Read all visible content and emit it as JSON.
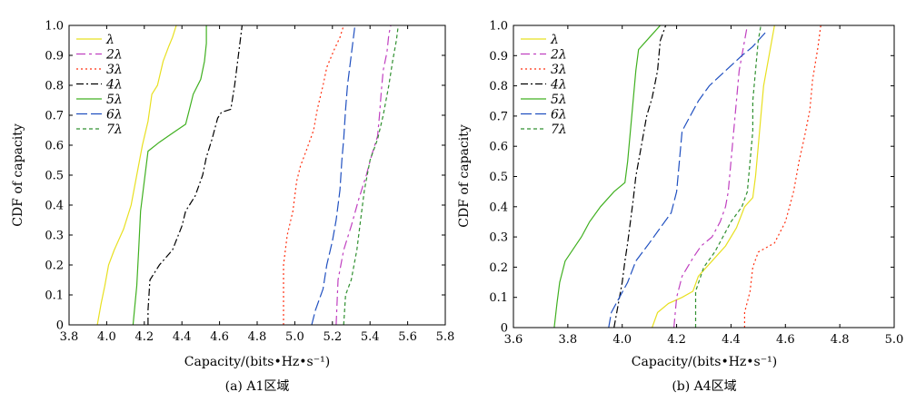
{
  "chart_data": [
    {
      "type": "line",
      "caption": "(a) A1区域",
      "xlabel": "Capacity/(bits•Hz•s⁻¹)",
      "ylabel": "CDF of capacity",
      "xlim": [
        3.8,
        5.8
      ],
      "ylim": [
        0,
        1.0
      ],
      "xticks": [
        "3.8",
        "4.0",
        "4.2",
        "4.4",
        "4.6",
        "4.8",
        "5.0",
        "5.2",
        "5.4",
        "5.6",
        "5.8"
      ],
      "yticks": [
        "0",
        "0.1",
        "0.2",
        "0.3",
        "0.4",
        "0.5",
        "0.6",
        "0.7",
        "0.8",
        "0.9",
        "1.0"
      ],
      "legend_position": "top-left",
      "series": [
        {
          "name": "λ",
          "color": "#e8e020",
          "dash": "solid",
          "points": [
            [
              3.95,
              0
            ],
            [
              3.97,
              0.07
            ],
            [
              3.99,
              0.13
            ],
            [
              4.01,
              0.2
            ],
            [
              4.04,
              0.25
            ],
            [
              4.09,
              0.32
            ],
            [
              4.13,
              0.4
            ],
            [
              4.16,
              0.5
            ],
            [
              4.19,
              0.6
            ],
            [
              4.22,
              0.68
            ],
            [
              4.24,
              0.77
            ],
            [
              4.27,
              0.8
            ],
            [
              4.3,
              0.88
            ],
            [
              4.33,
              0.93
            ],
            [
              4.35,
              0.96
            ],
            [
              4.37,
              1.0
            ]
          ]
        },
        {
          "name": "2λ",
          "color": "#c040c0",
          "dash": "10,4,3,4",
          "points": [
            [
              5.22,
              0
            ],
            [
              5.23,
              0.15
            ],
            [
              5.26,
              0.25
            ],
            [
              5.3,
              0.33
            ],
            [
              5.34,
              0.42
            ],
            [
              5.38,
              0.5
            ],
            [
              5.41,
              0.57
            ],
            [
              5.44,
              0.63
            ],
            [
              5.45,
              0.7
            ],
            [
              5.46,
              0.78
            ],
            [
              5.47,
              0.85
            ],
            [
              5.49,
              0.91
            ],
            [
              5.5,
              0.97
            ],
            [
              5.51,
              1.0
            ]
          ]
        },
        {
          "name": "3λ",
          "color": "#ff3010",
          "dash": "2,3",
          "points": [
            [
              4.94,
              0
            ],
            [
              4.94,
              0.2
            ],
            [
              4.96,
              0.3
            ],
            [
              4.99,
              0.38
            ],
            [
              5.01,
              0.48
            ],
            [
              5.03,
              0.53
            ],
            [
              5.06,
              0.58
            ],
            [
              5.1,
              0.65
            ],
            [
              5.12,
              0.72
            ],
            [
              5.15,
              0.8
            ],
            [
              5.17,
              0.86
            ],
            [
              5.21,
              0.92
            ],
            [
              5.24,
              0.96
            ],
            [
              5.26,
              1.0
            ]
          ]
        },
        {
          "name": "4λ",
          "color": "#000000",
          "dash": "8,3,2,3",
          "points": [
            [
              4.22,
              0
            ],
            [
              4.22,
              0.05
            ],
            [
              4.23,
              0.15
            ],
            [
              4.28,
              0.2
            ],
            [
              4.35,
              0.25
            ],
            [
              4.4,
              0.33
            ],
            [
              4.42,
              0.38
            ],
            [
              4.47,
              0.43
            ],
            [
              4.51,
              0.5
            ],
            [
              4.53,
              0.56
            ],
            [
              4.56,
              0.62
            ],
            [
              4.59,
              0.69
            ],
            [
              4.61,
              0.71
            ],
            [
              4.66,
              0.72
            ],
            [
              4.68,
              0.8
            ],
            [
              4.71,
              0.95
            ],
            [
              4.72,
              1.0
            ]
          ]
        },
        {
          "name": "5λ",
          "color": "#40b020",
          "dash": "solid",
          "points": [
            [
              4.14,
              0
            ],
            [
              4.16,
              0.13
            ],
            [
              4.17,
              0.25
            ],
            [
              4.18,
              0.38
            ],
            [
              4.2,
              0.48
            ],
            [
              4.22,
              0.58
            ],
            [
              4.28,
              0.61
            ],
            [
              4.35,
              0.64
            ],
            [
              4.42,
              0.67
            ],
            [
              4.44,
              0.72
            ],
            [
              4.46,
              0.77
            ],
            [
              4.5,
              0.82
            ],
            [
              4.52,
              0.88
            ],
            [
              4.53,
              0.94
            ],
            [
              4.53,
              1.0
            ]
          ]
        },
        {
          "name": "6λ",
          "color": "#2050c0",
          "dash": "12,4",
          "points": [
            [
              5.09,
              0
            ],
            [
              5.11,
              0.05
            ],
            [
              5.15,
              0.12
            ],
            [
              5.17,
              0.2
            ],
            [
              5.2,
              0.28
            ],
            [
              5.22,
              0.35
            ],
            [
              5.24,
              0.45
            ],
            [
              5.25,
              0.55
            ],
            [
              5.26,
              0.62
            ],
            [
              5.27,
              0.72
            ],
            [
              5.28,
              0.8
            ],
            [
              5.3,
              0.9
            ],
            [
              5.32,
              1.0
            ]
          ]
        },
        {
          "name": "7λ",
          "color": "#309030",
          "dash": "4,3",
          "points": [
            [
              5.26,
              0
            ],
            [
              5.27,
              0.1
            ],
            [
              5.3,
              0.15
            ],
            [
              5.33,
              0.25
            ],
            [
              5.35,
              0.35
            ],
            [
              5.37,
              0.45
            ],
            [
              5.4,
              0.55
            ],
            [
              5.44,
              0.62
            ],
            [
              5.47,
              0.7
            ],
            [
              5.5,
              0.8
            ],
            [
              5.52,
              0.88
            ],
            [
              5.54,
              0.95
            ],
            [
              5.55,
              1.0
            ]
          ]
        }
      ]
    },
    {
      "type": "line",
      "caption": "(b) A4区域",
      "xlabel": "Capacity/(bits•Hz•s⁻¹)",
      "ylabel": "CDF of capacity",
      "xlim": [
        3.6,
        5.0
      ],
      "ylim": [
        0,
        1.0
      ],
      "xticks": [
        "3.6",
        "3.8",
        "4.0",
        "4.2",
        "4.4",
        "4.6",
        "4.8",
        "5.0"
      ],
      "yticks": [
        "0",
        "0.1",
        "0.2",
        "0.3",
        "0.4",
        "0.5",
        "0.6",
        "0.7",
        "0.8",
        "0.9",
        "1.0"
      ],
      "legend_position": "top-left",
      "series": [
        {
          "name": "λ",
          "color": "#e8e020",
          "dash": "solid",
          "points": [
            [
              4.11,
              0
            ],
            [
              4.13,
              0.05
            ],
            [
              4.17,
              0.08
            ],
            [
              4.22,
              0.1
            ],
            [
              4.26,
              0.12
            ],
            [
              4.28,
              0.17
            ],
            [
              4.33,
              0.22
            ],
            [
              4.38,
              0.27
            ],
            [
              4.42,
              0.33
            ],
            [
              4.45,
              0.4
            ],
            [
              4.48,
              0.43
            ],
            [
              4.49,
              0.5
            ],
            [
              4.5,
              0.6
            ],
            [
              4.51,
              0.7
            ],
            [
              4.52,
              0.8
            ],
            [
              4.54,
              0.9
            ],
            [
              4.56,
              1.0
            ]
          ]
        },
        {
          "name": "2λ",
          "color": "#c040c0",
          "dash": "10,4,3,4",
          "points": [
            [
              4.19,
              0
            ],
            [
              4.2,
              0.1
            ],
            [
              4.22,
              0.17
            ],
            [
              4.26,
              0.23
            ],
            [
              4.29,
              0.27
            ],
            [
              4.33,
              0.3
            ],
            [
              4.36,
              0.35
            ],
            [
              4.38,
              0.4
            ],
            [
              4.39,
              0.45
            ],
            [
              4.4,
              0.55
            ],
            [
              4.41,
              0.65
            ],
            [
              4.42,
              0.75
            ],
            [
              4.43,
              0.85
            ],
            [
              4.45,
              0.95
            ],
            [
              4.46,
              1.0
            ]
          ]
        },
        {
          "name": "3λ",
          "color": "#ff3010",
          "dash": "2,3",
          "points": [
            [
              4.45,
              0
            ],
            [
              4.45,
              0.05
            ],
            [
              4.47,
              0.12
            ],
            [
              4.48,
              0.2
            ],
            [
              4.5,
              0.25
            ],
            [
              4.56,
              0.28
            ],
            [
              4.6,
              0.35
            ],
            [
              4.63,
              0.45
            ],
            [
              4.65,
              0.55
            ],
            [
              4.67,
              0.63
            ],
            [
              4.69,
              0.72
            ],
            [
              4.7,
              0.82
            ],
            [
              4.72,
              0.93
            ],
            [
              4.73,
              1.0
            ]
          ]
        },
        {
          "name": "4λ",
          "color": "#000000",
          "dash": "8,3,2,3",
          "points": [
            [
              3.97,
              0
            ],
            [
              3.98,
              0.05
            ],
            [
              3.99,
              0.1
            ],
            [
              4.0,
              0.15
            ],
            [
              4.01,
              0.22
            ],
            [
              4.02,
              0.28
            ],
            [
              4.03,
              0.35
            ],
            [
              4.04,
              0.42
            ],
            [
              4.05,
              0.5
            ],
            [
              4.07,
              0.6
            ],
            [
              4.09,
              0.7
            ],
            [
              4.11,
              0.76
            ],
            [
              4.13,
              0.85
            ],
            [
              4.14,
              0.95
            ],
            [
              4.16,
              1.0
            ]
          ]
        },
        {
          "name": "5λ",
          "color": "#40b020",
          "dash": "solid",
          "points": [
            [
              3.75,
              0
            ],
            [
              3.76,
              0.08
            ],
            [
              3.77,
              0.15
            ],
            [
              3.79,
              0.22
            ],
            [
              3.82,
              0.26
            ],
            [
              3.85,
              0.3
            ],
            [
              3.88,
              0.35
            ],
            [
              3.92,
              0.4
            ],
            [
              3.97,
              0.45
            ],
            [
              4.01,
              0.48
            ],
            [
              4.02,
              0.55
            ],
            [
              4.03,
              0.65
            ],
            [
              4.04,
              0.75
            ],
            [
              4.05,
              0.85
            ],
            [
              4.06,
              0.92
            ],
            [
              4.1,
              0.96
            ],
            [
              4.14,
              1.0
            ]
          ]
        },
        {
          "name": "6λ",
          "color": "#2050c0",
          "dash": "12,4",
          "points": [
            [
              3.95,
              0
            ],
            [
              3.96,
              0.05
            ],
            [
              3.99,
              0.1
            ],
            [
              4.02,
              0.15
            ],
            [
              4.05,
              0.22
            ],
            [
              4.1,
              0.28
            ],
            [
              4.14,
              0.33
            ],
            [
              4.18,
              0.38
            ],
            [
              4.2,
              0.45
            ],
            [
              4.21,
              0.55
            ],
            [
              4.22,
              0.65
            ],
            [
              4.25,
              0.7
            ],
            [
              4.28,
              0.75
            ],
            [
              4.32,
              0.8
            ],
            [
              4.38,
              0.85
            ],
            [
              4.44,
              0.9
            ],
            [
              4.48,
              0.93
            ],
            [
              4.53,
              0.98
            ]
          ]
        },
        {
          "name": "7λ",
          "color": "#309030",
          "dash": "4,3",
          "points": [
            [
              4.27,
              0
            ],
            [
              4.27,
              0.12
            ],
            [
              4.3,
              0.2
            ],
            [
              4.34,
              0.25
            ],
            [
              4.37,
              0.3
            ],
            [
              4.4,
              0.35
            ],
            [
              4.44,
              0.4
            ],
            [
              4.46,
              0.45
            ],
            [
              4.47,
              0.55
            ],
            [
              4.48,
              0.65
            ],
            [
              4.48,
              0.75
            ],
            [
              4.49,
              0.85
            ],
            [
              4.5,
              0.95
            ],
            [
              4.51,
              1.0
            ]
          ]
        }
      ]
    }
  ]
}
